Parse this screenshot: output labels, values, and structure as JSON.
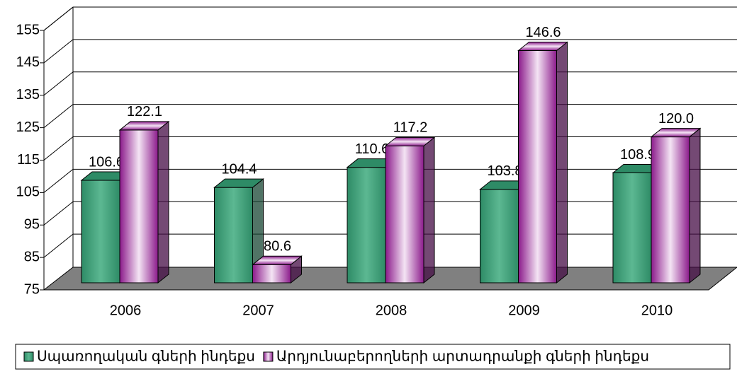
{
  "chart_data": {
    "type": "bar3d",
    "categories": [
      "2006",
      "2007",
      "2008",
      "2009",
      "2010"
    ],
    "series": [
      {
        "name": "Սպառողական գների ինդեքս",
        "color": "#2e8b66",
        "values": [
          106.6,
          104.4,
          110.6,
          103.8,
          108.9
        ],
        "value_labels": [
          "106.6",
          "104.4",
          "110.6",
          "103.8",
          "108.9"
        ]
      },
      {
        "name": "Արդյունաբերողների արտադրանքի գների ինդեքս",
        "color": "#8b1a8b",
        "values": [
          122.1,
          80.6,
          117.2,
          146.6,
          120.0
        ],
        "value_labels": [
          "122.1",
          "80.6",
          "117.2",
          "146.6",
          "120.0"
        ]
      }
    ],
    "ylim": [
      75,
      155
    ],
    "yticks": [
      75,
      85,
      95,
      105,
      115,
      125,
      135,
      145,
      155
    ],
    "grid": true,
    "legend": "bottom"
  }
}
